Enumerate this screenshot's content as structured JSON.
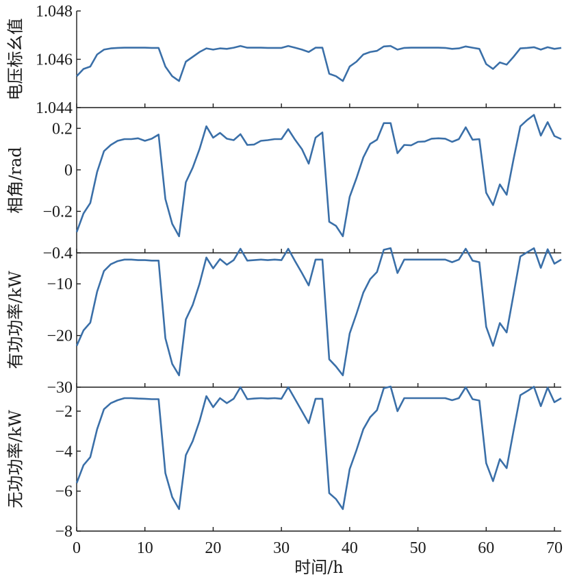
{
  "chart_data": [
    {
      "type": "line",
      "ylabel": "电压标幺值",
      "ylim": [
        1.044,
        1.048
      ],
      "yticks": [
        1.044,
        1.046,
        1.048
      ],
      "ytick_labels": [
        "1.044",
        "1.046",
        "1.048"
      ],
      "x": [
        0,
        1,
        2,
        3,
        4,
        5,
        6,
        7,
        8,
        9,
        10,
        11,
        12,
        13,
        14,
        15,
        16,
        17,
        18,
        19,
        20,
        21,
        22,
        23,
        24,
        25,
        26,
        27,
        28,
        29,
        30,
        31,
        32,
        33,
        34,
        35,
        36,
        37,
        38,
        39,
        40,
        41,
        42,
        43,
        44,
        45,
        46,
        47,
        48,
        49,
        50,
        51,
        52,
        53,
        54,
        55,
        56,
        57,
        58,
        59,
        60,
        61,
        62,
        63,
        64,
        65,
        66,
        67,
        68,
        69,
        70,
        71
      ],
      "values": [
        1.0453,
        1.0456,
        1.0457,
        1.0462,
        1.0464,
        1.04645,
        1.04647,
        1.04648,
        1.04648,
        1.04648,
        1.04648,
        1.04647,
        1.04647,
        1.0457,
        1.0453,
        1.0451,
        1.0459,
        1.0461,
        1.0463,
        1.04645,
        1.0464,
        1.04645,
        1.04643,
        1.04648,
        1.04655,
        1.04648,
        1.04648,
        1.04648,
        1.04647,
        1.04647,
        1.04647,
        1.04655,
        1.04648,
        1.0464,
        1.0463,
        1.04648,
        1.04648,
        1.0454,
        1.0453,
        1.0451,
        1.0457,
        1.0459,
        1.0462,
        1.0463,
        1.04635,
        1.04653,
        1.04655,
        1.0464,
        1.04647,
        1.04648,
        1.04648,
        1.04648,
        1.04648,
        1.04648,
        1.04647,
        1.04643,
        1.04645,
        1.04653,
        1.04648,
        1.04643,
        1.0458,
        1.0456,
        1.04587,
        1.04578,
        1.0461,
        1.04645,
        1.04647,
        1.0465,
        1.0464,
        1.0465,
        1.04643,
        1.04647
      ]
    },
    {
      "type": "line",
      "ylabel": "相角/rad",
      "ylim": [
        -0.4,
        0.3
      ],
      "yticks": [
        -0.4,
        -0.2,
        0,
        0.2
      ],
      "ytick_labels": [
        "−0.4",
        "−0.2",
        "0",
        "0.2"
      ],
      "x": [
        0,
        1,
        2,
        3,
        4,
        5,
        6,
        7,
        8,
        9,
        10,
        11,
        12,
        13,
        14,
        15,
        16,
        17,
        18,
        19,
        20,
        21,
        22,
        23,
        24,
        25,
        26,
        27,
        28,
        29,
        30,
        31,
        32,
        33,
        34,
        35,
        36,
        37,
        38,
        39,
        40,
        41,
        42,
        43,
        44,
        45,
        46,
        47,
        48,
        49,
        50,
        51,
        52,
        53,
        54,
        55,
        56,
        57,
        58,
        59,
        60,
        61,
        62,
        63,
        64,
        65,
        66,
        67,
        68,
        69,
        70,
        71
      ],
      "values": [
        -0.3,
        -0.21,
        -0.16,
        -0.01,
        0.09,
        0.12,
        0.14,
        0.148,
        0.148,
        0.152,
        0.14,
        0.15,
        0.17,
        -0.14,
        -0.26,
        -0.32,
        -0.06,
        0.01,
        0.1,
        0.21,
        0.155,
        0.178,
        0.15,
        0.143,
        0.172,
        0.12,
        0.122,
        0.14,
        0.143,
        0.148,
        0.148,
        0.196,
        0.145,
        0.1,
        0.03,
        0.155,
        0.18,
        -0.25,
        -0.27,
        -0.32,
        -0.13,
        -0.04,
        0.06,
        0.125,
        0.145,
        0.225,
        0.225,
        0.08,
        0.12,
        0.118,
        0.135,
        0.137,
        0.15,
        0.152,
        0.15,
        0.135,
        0.148,
        0.205,
        0.145,
        0.148,
        -0.11,
        -0.17,
        -0.07,
        -0.12,
        0.05,
        0.21,
        0.24,
        0.265,
        0.165,
        0.23,
        0.163,
        0.148
      ]
    },
    {
      "type": "line",
      "ylabel": "有功功率/kW",
      "ylim": [
        -30,
        -4
      ],
      "yticks": [
        -30,
        -20,
        -10
      ],
      "ytick_labels": [
        "−30",
        "−20",
        "−10"
      ],
      "x": [
        0,
        1,
        2,
        3,
        4,
        5,
        6,
        7,
        8,
        9,
        10,
        11,
        12,
        13,
        14,
        15,
        16,
        17,
        18,
        19,
        20,
        21,
        22,
        23,
        24,
        25,
        26,
        27,
        28,
        29,
        30,
        31,
        32,
        33,
        34,
        35,
        36,
        37,
        38,
        39,
        40,
        41,
        42,
        43,
        44,
        45,
        46,
        47,
        48,
        49,
        50,
        51,
        52,
        53,
        54,
        55,
        56,
        57,
        58,
        59,
        60,
        61,
        62,
        63,
        64,
        65,
        66,
        67,
        68,
        69,
        70,
        71
      ],
      "values": [
        -22,
        -19,
        -17.5,
        -11.5,
        -7.5,
        -6.2,
        -5.6,
        -5.3,
        -5.3,
        -5.4,
        -5.4,
        -5.5,
        -5.5,
        -20.5,
        -25.5,
        -27.7,
        -16.9,
        -14.1,
        -10,
        -4.9,
        -7,
        -5.2,
        -6.3,
        -5.4,
        -3.2,
        -5.5,
        -5.4,
        -5.3,
        -5.4,
        -5.3,
        -5.4,
        -3.2,
        -5.6,
        -7.9,
        -10.3,
        -5.3,
        -5.3,
        -24.6,
        -26,
        -27.7,
        -19.6,
        -15.8,
        -11.7,
        -9.1,
        -7.7,
        -3.4,
        -3.1,
        -7.9,
        -5.3,
        -5.3,
        -5.3,
        -5.3,
        -5.3,
        -5.3,
        -5.3,
        -5.8,
        -5.3,
        -3.2,
        -5.5,
        -5.8,
        -18.3,
        -22,
        -17.6,
        -19.4,
        -12.1,
        -4.7,
        -3.9,
        -3.1,
        -6.9,
        -3.3,
        -6.1,
        -5.3
      ]
    },
    {
      "type": "line",
      "ylabel": "无功功率/kW",
      "ylim": [
        -8,
        -0.8
      ],
      "yticks": [
        -8,
        -6,
        -4,
        -2
      ],
      "ytick_labels": [
        "−8",
        "−6",
        "−4",
        "−2"
      ],
      "xlabel": "时间/h",
      "xlim": [
        0,
        71
      ],
      "xticks": [
        0,
        10,
        20,
        30,
        40,
        50,
        60,
        70
      ],
      "xtick_labels": [
        "0",
        "10",
        "20",
        "30",
        "40",
        "50",
        "60",
        "70"
      ],
      "x": [
        0,
        1,
        2,
        3,
        4,
        5,
        6,
        7,
        8,
        9,
        10,
        11,
        12,
        13,
        14,
        15,
        16,
        17,
        18,
        19,
        20,
        21,
        22,
        23,
        24,
        25,
        26,
        27,
        28,
        29,
        30,
        31,
        32,
        33,
        34,
        35,
        36,
        37,
        38,
        39,
        40,
        41,
        42,
        43,
        44,
        45,
        46,
        47,
        48,
        49,
        50,
        51,
        52,
        53,
        54,
        55,
        56,
        57,
        58,
        59,
        60,
        61,
        62,
        63,
        64,
        65,
        66,
        67,
        68,
        69,
        70,
        71
      ],
      "values": [
        -5.6,
        -4.7,
        -4.3,
        -2.9,
        -1.9,
        -1.6,
        -1.45,
        -1.35,
        -1.35,
        -1.37,
        -1.38,
        -1.4,
        -1.4,
        -5.1,
        -6.3,
        -6.9,
        -4.2,
        -3.5,
        -2.5,
        -1.25,
        -1.8,
        -1.35,
        -1.6,
        -1.38,
        -0.8,
        -1.4,
        -1.37,
        -1.35,
        -1.37,
        -1.35,
        -1.38,
        -0.8,
        -1.4,
        -2,
        -2.6,
        -1.38,
        -1.38,
        -6.1,
        -6.4,
        -6.9,
        -4.9,
        -3.95,
        -2.9,
        -2.3,
        -1.95,
        -0.85,
        -0.77,
        -2,
        -1.35,
        -1.35,
        -1.35,
        -1.35,
        -1.35,
        -1.35,
        -1.35,
        -1.45,
        -1.35,
        -0.8,
        -1.4,
        -1.47,
        -4.6,
        -5.5,
        -4.4,
        -4.85,
        -3,
        -1.2,
        -1,
        -0.78,
        -1.75,
        -0.82,
        -1.55,
        -1.35
      ]
    }
  ]
}
